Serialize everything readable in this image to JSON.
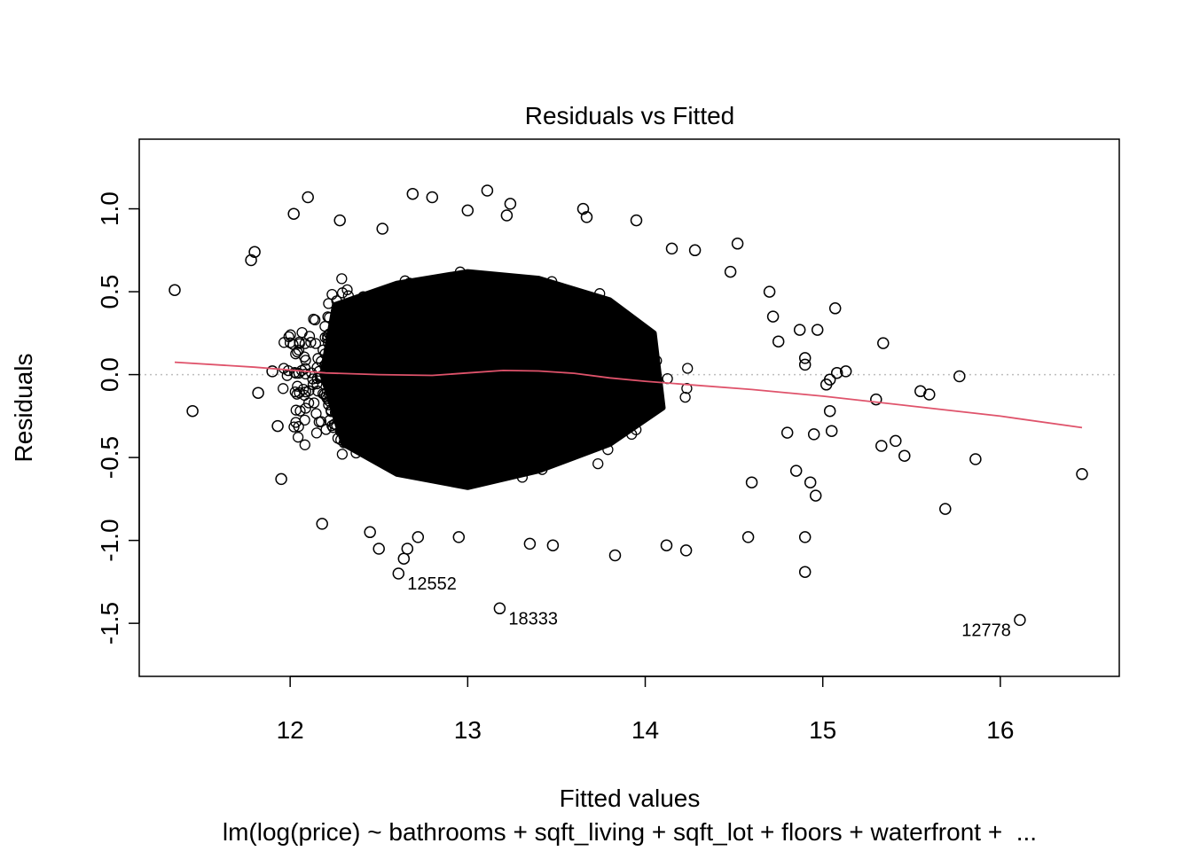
{
  "chart_data": {
    "type": "scatter",
    "title": "Residuals vs Fitted",
    "xlabel": "Fitted values",
    "ylabel": "Residuals",
    "subtitle": "lm(log(price) ~ bathrooms + sqft_living + sqft_lot + floors + waterfront +  ...",
    "xlim": [
      11.15,
      16.67
    ],
    "ylim": [
      -1.82,
      1.42
    ],
    "x_ticks": [
      12,
      13,
      14,
      15,
      16
    ],
    "x_tick_labels": [
      "12",
      "13",
      "14",
      "15",
      "16"
    ],
    "y_ticks": [
      -1.5,
      -1.0,
      -0.5,
      0.0,
      0.5,
      1.0
    ],
    "y_tick_labels": [
      "-1.5",
      "-1.0",
      "-0.5",
      "0.0",
      "0.5",
      "1.0"
    ],
    "reference_line": {
      "y": 0,
      "style": "dotted",
      "color": "#bebebe"
    },
    "dense_cloud": {
      "x_range": [
        12.15,
        14.2
      ],
      "y_range": [
        -0.7,
        0.6
      ],
      "approx_points": 21000
    },
    "points": [
      {
        "x": 11.35,
        "y": 0.51
      },
      {
        "x": 11.45,
        "y": -0.22
      },
      {
        "x": 11.78,
        "y": 0.69
      },
      {
        "x": 11.8,
        "y": 0.74
      },
      {
        "x": 11.82,
        "y": -0.11
      },
      {
        "x": 11.9,
        "y": 0.02
      },
      {
        "x": 11.93,
        "y": -0.31
      },
      {
        "x": 11.95,
        "y": -0.63
      },
      {
        "x": 12.02,
        "y": 0.97
      },
      {
        "x": 12.1,
        "y": 1.07
      },
      {
        "x": 12.18,
        "y": -0.9
      },
      {
        "x": 12.28,
        "y": 0.93
      },
      {
        "x": 12.45,
        "y": -0.95
      },
      {
        "x": 12.5,
        "y": -1.05
      },
      {
        "x": 12.52,
        "y": 0.88
      },
      {
        "x": 12.69,
        "y": 1.09
      },
      {
        "x": 12.72,
        "y": -0.98
      },
      {
        "x": 12.8,
        "y": 1.07
      },
      {
        "x": 12.95,
        "y": -0.98
      },
      {
        "x": 13.0,
        "y": 0.99
      },
      {
        "x": 13.11,
        "y": 1.11
      },
      {
        "x": 13.22,
        "y": 0.96
      },
      {
        "x": 13.24,
        "y": 1.03
      },
      {
        "x": 13.35,
        "y": -1.02
      },
      {
        "x": 13.48,
        "y": -1.03
      },
      {
        "x": 13.65,
        "y": 1.0
      },
      {
        "x": 13.67,
        "y": 0.95
      },
      {
        "x": 13.83,
        "y": -1.09
      },
      {
        "x": 13.95,
        "y": 0.93
      },
      {
        "x": 14.12,
        "y": -1.03
      },
      {
        "x": 14.15,
        "y": 0.76
      },
      {
        "x": 14.28,
        "y": 0.75
      },
      {
        "x": 14.23,
        "y": -1.06
      },
      {
        "x": 14.52,
        "y": 0.79
      },
      {
        "x": 14.48,
        "y": 0.62
      },
      {
        "x": 14.58,
        "y": -0.98
      },
      {
        "x": 14.6,
        "y": -0.65
      },
      {
        "x": 14.7,
        "y": 0.5
      },
      {
        "x": 14.72,
        "y": 0.35
      },
      {
        "x": 14.75,
        "y": 0.2
      },
      {
        "x": 14.8,
        "y": -0.35
      },
      {
        "x": 14.85,
        "y": -0.58
      },
      {
        "x": 14.87,
        "y": 0.27
      },
      {
        "x": 14.9,
        "y": 0.1
      },
      {
        "x": 14.9,
        "y": 0.06
      },
      {
        "x": 14.9,
        "y": -0.98
      },
      {
        "x": 14.9,
        "y": -1.19
      },
      {
        "x": 14.93,
        "y": -0.65
      },
      {
        "x": 14.95,
        "y": -0.36
      },
      {
        "x": 14.96,
        "y": -0.73
      },
      {
        "x": 14.97,
        "y": 0.27
      },
      {
        "x": 15.02,
        "y": -0.06
      },
      {
        "x": 15.04,
        "y": -0.03
      },
      {
        "x": 15.04,
        "y": -0.22
      },
      {
        "x": 15.05,
        "y": -0.34
      },
      {
        "x": 15.07,
        "y": 0.4
      },
      {
        "x": 15.08,
        "y": 0.01
      },
      {
        "x": 15.13,
        "y": 0.02
      },
      {
        "x": 15.3,
        "y": -0.15
      },
      {
        "x": 15.33,
        "y": -0.43
      },
      {
        "x": 15.34,
        "y": 0.19
      },
      {
        "x": 15.41,
        "y": -0.4
      },
      {
        "x": 15.46,
        "y": -0.49
      },
      {
        "x": 15.55,
        "y": -0.1
      },
      {
        "x": 15.6,
        "y": -0.12
      },
      {
        "x": 15.69,
        "y": -0.81
      },
      {
        "x": 15.77,
        "y": -0.01
      },
      {
        "x": 15.86,
        "y": -0.51
      },
      {
        "x": 16.11,
        "y": -1.48
      },
      {
        "x": 16.46,
        "y": -0.6
      },
      {
        "x": 12.61,
        "y": -1.2
      },
      {
        "x": 13.18,
        "y": -1.41
      },
      {
        "x": 12.64,
        "y": -1.11
      },
      {
        "x": 12.66,
        "y": -1.05
      }
    ],
    "outlier_labels": [
      {
        "label": "12552",
        "x": 12.61,
        "y": -1.2
      },
      {
        "label": "18333",
        "x": 13.18,
        "y": -1.41
      },
      {
        "label": "12778",
        "x": 16.11,
        "y": -1.48
      }
    ],
    "smoother": {
      "color": "#df536b",
      "x": [
        11.35,
        11.8,
        12.2,
        12.5,
        12.8,
        13.0,
        13.2,
        13.4,
        13.6,
        13.8,
        14.0,
        14.3,
        14.6,
        15.0,
        15.5,
        16.0,
        16.46
      ],
      "y": [
        0.075,
        0.045,
        0.01,
        0.0,
        -0.005,
        0.01,
        0.025,
        0.022,
        0.008,
        -0.02,
        -0.04,
        -0.065,
        -0.09,
        -0.13,
        -0.19,
        -0.25,
        -0.32
      ]
    }
  }
}
